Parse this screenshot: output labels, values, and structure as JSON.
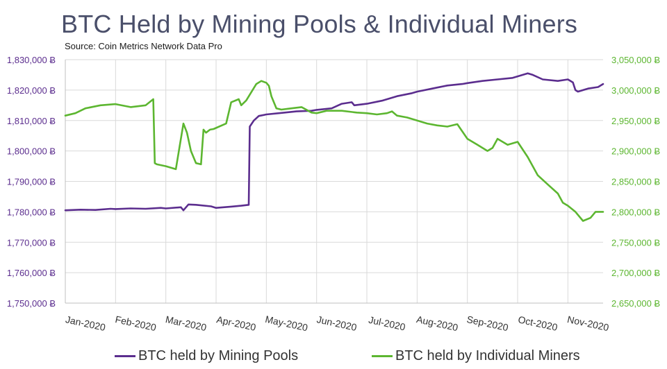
{
  "title": "BTC Held by Mining Pools & Individual Miners",
  "source": "Source: Coin Metrics Network Data Pro",
  "colors": {
    "pools": "#5b2d8e",
    "miners": "#5cb630",
    "left_axis": "#5b2d8e",
    "right_axis": "#5cb630",
    "grid": "#d9d9d9"
  },
  "chart_data": {
    "type": "line",
    "title": "BTC Held by Mining Pools & Individual Miners",
    "x_labels": [
      "Jan-2020",
      "Feb-2020",
      "Mar-2020",
      "Apr-2020",
      "May-2020",
      "Jun-2020",
      "Jul-2020",
      "Aug-2020",
      "Sep-2020",
      "Oct-2020",
      "Nov-2020"
    ],
    "y_left": {
      "ylim": [
        1750000,
        1830000
      ],
      "ticks": [
        "1,750,000 Ƀ",
        "1,760,000 Ƀ",
        "1,770,000 Ƀ",
        "1,780,000 Ƀ",
        "1,790,000 Ƀ",
        "1,800,000 Ƀ",
        "1,810,000 Ƀ",
        "1,820,000 Ƀ",
        "1,830,000 Ƀ"
      ]
    },
    "y_right": {
      "ylim": [
        2650000,
        3050000
      ],
      "ticks": [
        "2,650,000 Ƀ",
        "2,700,000 Ƀ",
        "2,750,000 Ƀ",
        "2,800,000 Ƀ",
        "2,850,000 Ƀ",
        "2,900,000 Ƀ",
        "2,950,000 Ƀ",
        "3,000,000 Ƀ",
        "3,050,000 Ƀ"
      ]
    },
    "series": [
      {
        "name": "BTC held by Mining Pools",
        "axis": "left",
        "x": [
          0,
          0.3,
          0.6,
          0.9,
          1.0,
          1.3,
          1.6,
          1.9,
          2.0,
          2.3,
          2.35,
          2.45,
          2.6,
          2.9,
          3.0,
          3.3,
          3.5,
          3.65,
          3.67,
          3.75,
          3.85,
          4.0,
          4.3,
          4.6,
          4.9,
          5.0,
          5.3,
          5.5,
          5.7,
          5.75,
          6.0,
          6.3,
          6.6,
          6.9,
          7.0,
          7.3,
          7.6,
          7.9,
          8.0,
          8.3,
          8.6,
          8.9,
          9.0,
          9.2,
          9.3,
          9.5,
          9.8,
          10.0,
          10.1,
          10.15,
          10.2,
          10.4,
          10.6,
          10.7
        ],
        "values": [
          1780500,
          1780700,
          1780600,
          1781000,
          1780900,
          1781100,
          1781000,
          1781300,
          1781100,
          1781500,
          1780500,
          1782400,
          1782300,
          1781800,
          1781300,
          1781700,
          1782000,
          1782300,
          1808000,
          1810000,
          1811500,
          1812000,
          1812500,
          1813000,
          1813200,
          1813500,
          1814000,
          1815500,
          1816000,
          1815000,
          1815500,
          1816500,
          1818000,
          1819000,
          1819500,
          1820500,
          1821500,
          1822000,
          1822300,
          1823000,
          1823500,
          1824000,
          1824500,
          1825500,
          1825000,
          1823500,
          1823000,
          1823500,
          1822500,
          1820000,
          1819500,
          1820500,
          1821000,
          1822000
        ]
      },
      {
        "name": "BTC held by Individual Miners",
        "axis": "right",
        "x": [
          0,
          0.2,
          0.4,
          0.7,
          1.0,
          1.3,
          1.6,
          1.75,
          1.78,
          1.82,
          2.0,
          2.2,
          2.35,
          2.42,
          2.5,
          2.6,
          2.7,
          2.75,
          2.8,
          2.88,
          2.95,
          3.2,
          3.3,
          3.45,
          3.5,
          3.6,
          3.8,
          3.9,
          4.0,
          4.05,
          4.1,
          4.2,
          4.3,
          4.5,
          4.7,
          4.9,
          5.0,
          5.2,
          5.5,
          5.8,
          6.0,
          6.2,
          6.4,
          6.5,
          6.6,
          6.8,
          7.0,
          7.2,
          7.4,
          7.6,
          7.8,
          8.0,
          8.2,
          8.4,
          8.5,
          8.6,
          8.8,
          9.0,
          9.2,
          9.4,
          9.6,
          9.8,
          9.9,
          10.0,
          10.15,
          10.3,
          10.45,
          10.55,
          10.7
        ],
        "values": [
          2958000,
          2962000,
          2970000,
          2975000,
          2977000,
          2972000,
          2975000,
          2985000,
          2880000,
          2878000,
          2875000,
          2870000,
          2945000,
          2930000,
          2900000,
          2880000,
          2878000,
          2935000,
          2930000,
          2935000,
          2936000,
          2945000,
          2980000,
          2985000,
          2975000,
          2983000,
          3010000,
          3015000,
          3012000,
          3007000,
          2990000,
          2970000,
          2968000,
          2970000,
          2972000,
          2963000,
          2962000,
          2966000,
          2966000,
          2963000,
          2962000,
          2960000,
          2962000,
          2965000,
          2958000,
          2955000,
          2950000,
          2945000,
          2942000,
          2940000,
          2944000,
          2920000,
          2910000,
          2900000,
          2905000,
          2920000,
          2910000,
          2915000,
          2890000,
          2860000,
          2845000,
          2830000,
          2815000,
          2810000,
          2800000,
          2785000,
          2790000,
          2800000,
          2800000
        ]
      }
    ]
  },
  "legend": {
    "pools_label": "BTC held by Mining Pools",
    "miners_label": "BTC held by Individual Miners"
  }
}
